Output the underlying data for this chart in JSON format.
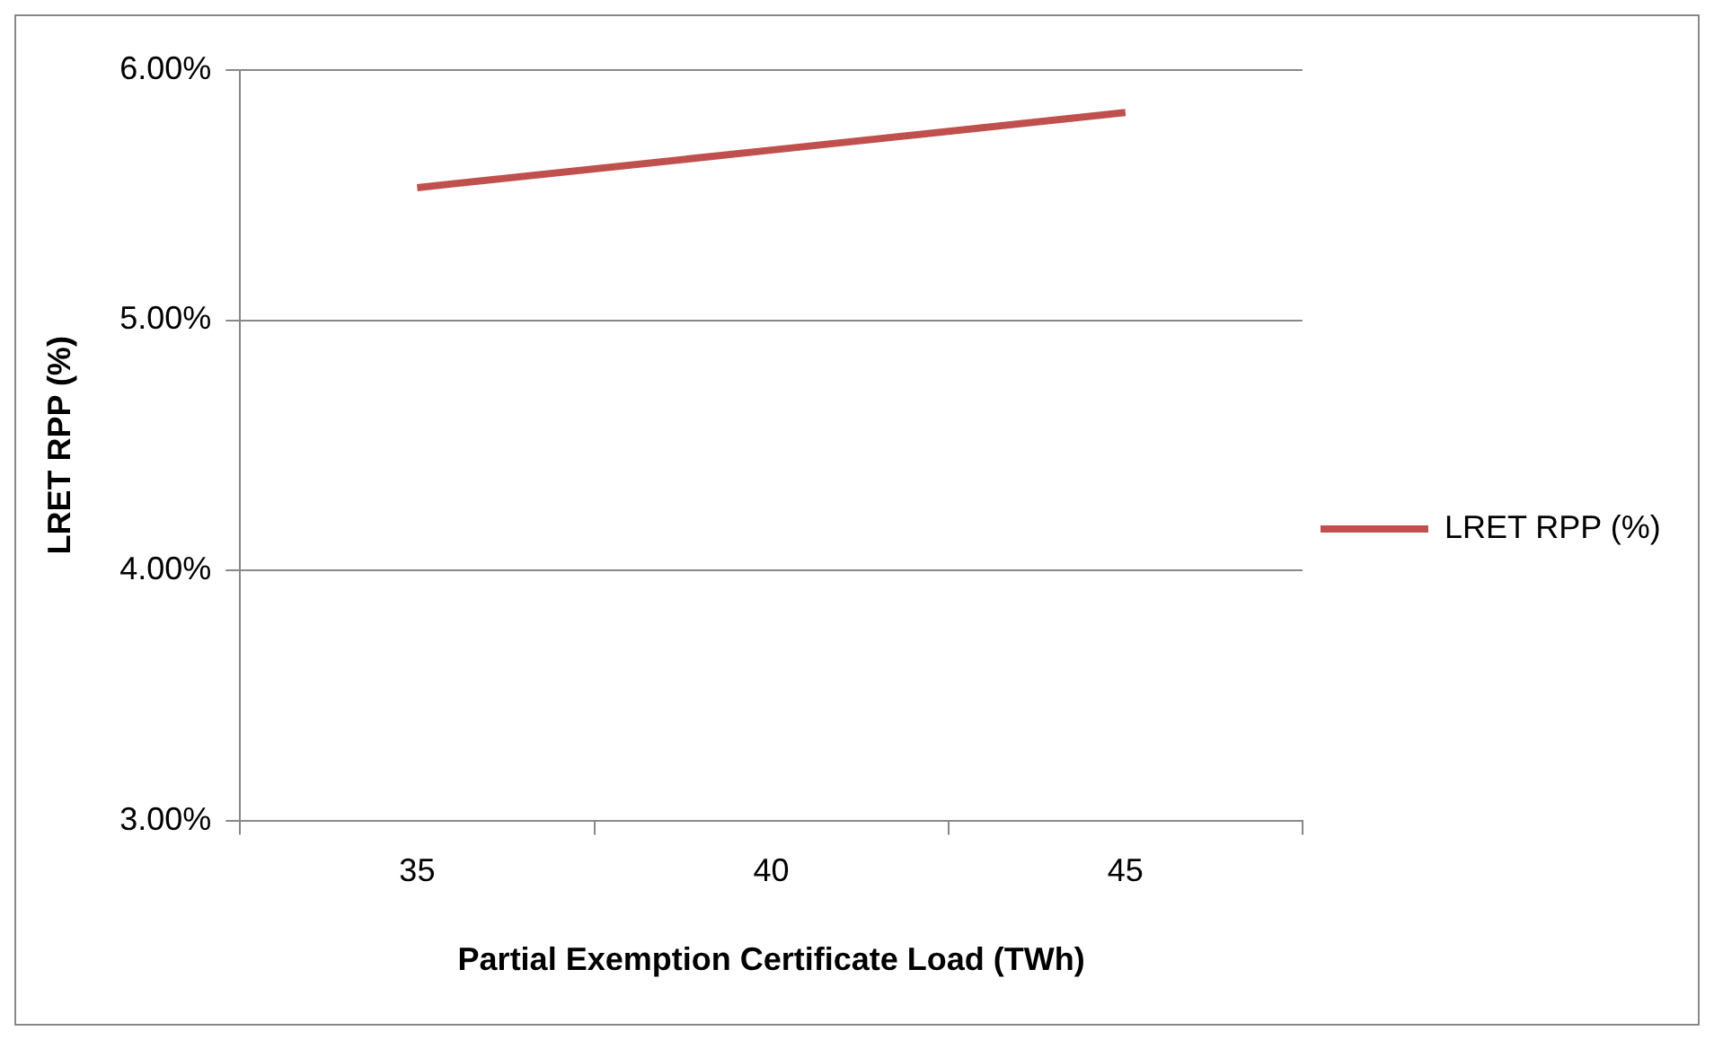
{
  "chart_data": {
    "type": "line",
    "xlabel": "Partial Exemption Certificate Load (TWh)",
    "ylabel": "LRET RPP (%)",
    "categories": [
      "35",
      "40",
      "45"
    ],
    "series": [
      {
        "name": "LRET RPP (%)",
        "color": "#c0504d",
        "values": [
          5.53,
          5.68,
          5.83
        ]
      }
    ],
    "ylim": [
      3,
      6
    ],
    "yticks": [
      {
        "value": 3,
        "label": "3.00%"
      },
      {
        "value": 4,
        "label": "4.00%"
      },
      {
        "value": 5,
        "label": "5.00%"
      },
      {
        "value": 6,
        "label": "6.00%"
      }
    ],
    "grid": "y",
    "legend": "right",
    "marker": "none",
    "line_style": "solid"
  }
}
